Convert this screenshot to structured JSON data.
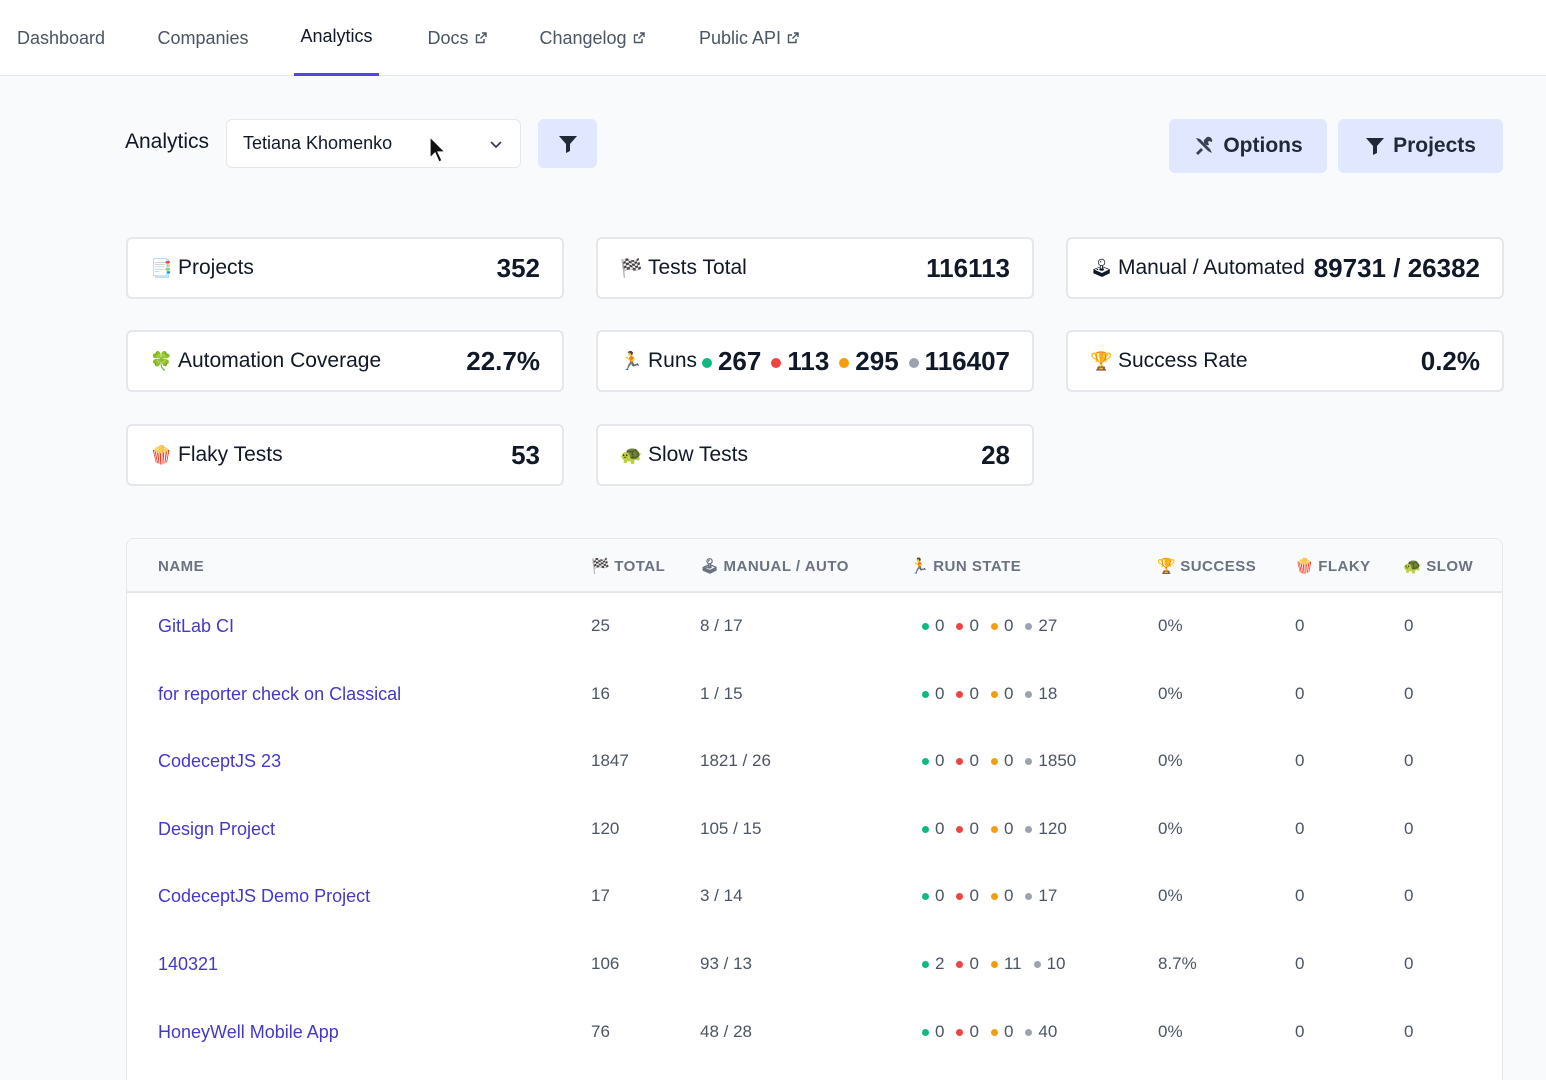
{
  "nav": {
    "tabs": [
      {
        "label": "Dashboard"
      },
      {
        "label": "Companies"
      },
      {
        "label": "Analytics"
      },
      {
        "label": "Docs"
      },
      {
        "label": "Changelog"
      },
      {
        "label": "Public API"
      }
    ],
    "active_tab": "Analytics"
  },
  "toolbar": {
    "title": "Analytics",
    "user_select_value": "Tetiana Khomenko",
    "options_label": "Options",
    "projects_label": "Projects"
  },
  "stats": {
    "projects": {
      "label": "Projects",
      "value": "352",
      "emoji": "📑"
    },
    "tests_total": {
      "label": "Tests Total",
      "value": "116113",
      "emoji": "🏁"
    },
    "manual_automated": {
      "label": "Manual / Automated",
      "value": "89731 / 26382",
      "emoji": "🕹"
    },
    "automation_coverage": {
      "label": "Automation Coverage",
      "value": "22.7%",
      "emoji": "🍀"
    },
    "runs": {
      "label": "Runs",
      "emoji": "🏃",
      "passed": "267",
      "failed": "113",
      "skipped": "295",
      "pending": "116407"
    },
    "success_rate": {
      "label": "Success Rate",
      "value": "0.2%",
      "emoji": "🏆"
    },
    "flaky_tests": {
      "label": "Flaky Tests",
      "value": "53",
      "emoji": "🍿"
    },
    "slow_tests": {
      "label": "Slow Tests",
      "value": "28",
      "emoji": "🐢"
    }
  },
  "table": {
    "headers": {
      "name": "NAME",
      "total": "TOTAL",
      "manual_auto": "MANUAL / AUTO",
      "run_state": "RUN STATE",
      "success": "SUCCESS",
      "flaky": "FLAKY",
      "slow": "SLOW"
    },
    "rows": [
      {
        "name": "GitLab CI",
        "total": "25",
        "manual_auto": "8 / 17",
        "rs": [
          "0",
          "0",
          "0",
          "27"
        ],
        "success": "0%",
        "flaky": "0",
        "slow": "0"
      },
      {
        "name": "for reporter check on Classical",
        "total": "16",
        "manual_auto": "1 / 15",
        "rs": [
          "0",
          "0",
          "0",
          "18"
        ],
        "success": "0%",
        "flaky": "0",
        "slow": "0"
      },
      {
        "name": "CodeceptJS 23",
        "total": "1847",
        "manual_auto": "1821 / 26",
        "rs": [
          "0",
          "0",
          "0",
          "1850"
        ],
        "success": "0%",
        "flaky": "0",
        "slow": "0"
      },
      {
        "name": "Design Project",
        "total": "120",
        "manual_auto": "105 / 15",
        "rs": [
          "0",
          "0",
          "0",
          "120"
        ],
        "success": "0%",
        "flaky": "0",
        "slow": "0"
      },
      {
        "name": "CodeceptJS Demo Project",
        "total": "17",
        "manual_auto": "3 / 14",
        "rs": [
          "0",
          "0",
          "0",
          "17"
        ],
        "success": "0%",
        "flaky": "0",
        "slow": "0"
      },
      {
        "name": "140321",
        "total": "106",
        "manual_auto": "93 / 13",
        "rs": [
          "2",
          "0",
          "11",
          "10"
        ],
        "success": "8.7%",
        "flaky": "0",
        "slow": "0"
      },
      {
        "name": "HoneyWell Mobile App",
        "total": "76",
        "manual_auto": "48 / 28",
        "rs": [
          "0",
          "0",
          "0",
          "40"
        ],
        "success": "0%",
        "flaky": "0",
        "slow": "0"
      }
    ]
  },
  "colors": {
    "accent": "#4f46e5",
    "link": "#4338ca",
    "passed": "#10b981",
    "failed": "#ef4444",
    "skipped": "#f59e0b",
    "pending": "#9ca3af"
  }
}
